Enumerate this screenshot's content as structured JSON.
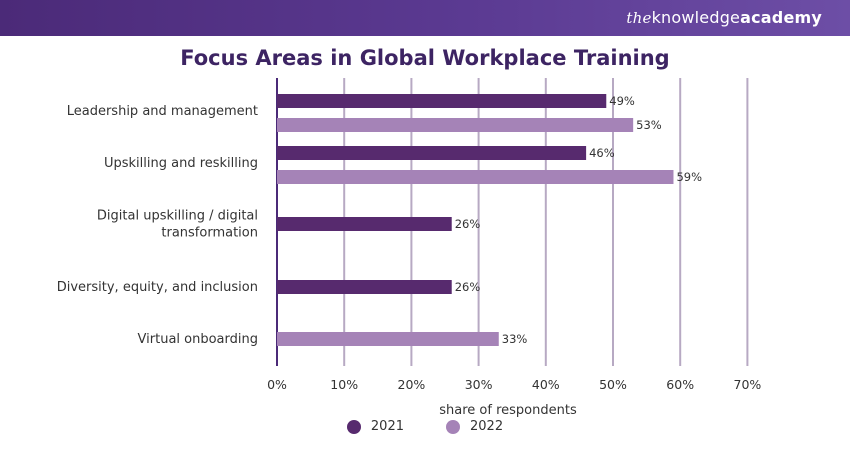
{
  "brand": {
    "the": "the",
    "knowledge": "knowledge",
    "academy": "academy"
  },
  "colors": {
    "header": "#4b2a78",
    "series_2021": "#572a6e",
    "series_2022": "#a583b7",
    "grid": "#b7a9c3",
    "axis": "#4b2a78",
    "title": "#3d2463"
  },
  "chart_data": {
    "type": "bar",
    "orientation": "horizontal",
    "title": "Focus Areas in Global Workplace Training",
    "xlabel": "share of respondents",
    "ylabel": "",
    "xlim": [
      0,
      70
    ],
    "x_ticks": [
      0,
      10,
      20,
      30,
      40,
      50,
      60,
      70
    ],
    "x_tick_labels": [
      "0%",
      "10%",
      "20%",
      "30%",
      "40%",
      "50%",
      "60%",
      "70%"
    ],
    "grid": true,
    "legend_position": "bottom",
    "categories": [
      [
        "Leadership and management"
      ],
      [
        "Upskilling and reskilling"
      ],
      [
        "Digital upskilling / digital",
        "transformation"
      ],
      [
        "Diversity, equity, and inclusion"
      ],
      [
        "Virtual onboarding"
      ]
    ],
    "series": [
      {
        "name": "2021",
        "values": [
          49,
          46,
          26,
          26,
          null
        ]
      },
      {
        "name": "2022",
        "values": [
          53,
          59,
          null,
          null,
          33
        ]
      }
    ],
    "value_suffix": "%"
  }
}
